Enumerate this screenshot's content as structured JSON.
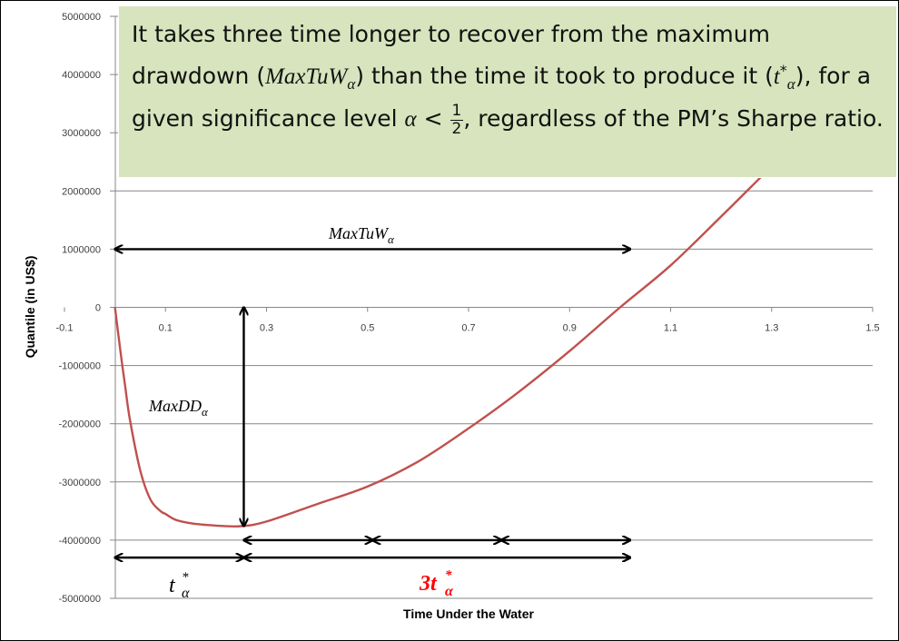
{
  "callout": {
    "p1": "It takes three time longer to recover from the maximum drawdown (",
    "maxtuw_sym": "MaxTuW",
    "alpha": "α",
    "p2": ") than the time it took to produce it (",
    "t_sym": "t",
    "star": "*",
    "p3": "), for a given significance level ",
    "lt": " < ",
    "frac_num": "1",
    "frac_den": "2",
    "p4": ", regardless of the PM’s Sharpe ratio."
  },
  "annotations": {
    "maxtuw": {
      "base": "MaxTuW",
      "sub": "α"
    },
    "maxdd": {
      "base": "MaxDD",
      "sub": "α"
    },
    "t_star": {
      "base": "t",
      "sub": "α",
      "sup": "*"
    },
    "three_t_star": {
      "base": "3t",
      "sub": "α",
      "sup": "*",
      "color": "#ff0000"
    }
  },
  "colors": {
    "curve": "#c0504d",
    "callout_bg": "#d7e4bd",
    "gridline": "#878787",
    "arrow": "#000000"
  },
  "chart_data": {
    "type": "line",
    "title": "",
    "xlabel": "Time Under the Water",
    "ylabel": "Quantile (in US$)",
    "xlim": [
      -0.1,
      1.5
    ],
    "ylim": [
      -5000000,
      5000000
    ],
    "x_ticks": [
      "-0.1",
      "0.1",
      "0.3",
      "0.5",
      "0.7",
      "0.9",
      "1.1",
      "1.3",
      "1.5"
    ],
    "y_ticks": [
      "5000000",
      "4000000",
      "3000000",
      "2000000",
      "1000000",
      "0",
      "-1000000",
      "-2000000",
      "-3000000",
      "-4000000",
      "-5000000"
    ],
    "grid": "horizontal",
    "series": [
      {
        "color": "#c0504d",
        "x": [
          0,
          0.01,
          0.02,
          0.03,
          0.05,
          0.07,
          0.09,
          0.1,
          0.12,
          0.15,
          0.2,
          0.25,
          0.3,
          0.4,
          0.5,
          0.6,
          0.7,
          0.8,
          0.9,
          1.0,
          1.1,
          1.2,
          1.28
        ],
        "y": [
          0,
          -700000,
          -1350000,
          -1950000,
          -2800000,
          -3300000,
          -3500000,
          -3550000,
          -3650000,
          -3710000,
          -3750000,
          -3760000,
          -3680000,
          -3380000,
          -3080000,
          -2650000,
          -2080000,
          -1450000,
          -750000,
          0,
          720000,
          1560000,
          2250000
        ]
      }
    ],
    "arrows": [
      {
        "label": "MaxTuW_α",
        "from": [
          0,
          1000000
        ],
        "to": [
          1.02,
          1000000
        ]
      },
      {
        "label": "MaxDD_α",
        "from": [
          0.255,
          0
        ],
        "to": [
          0.255,
          -3760000
        ]
      },
      {
        "label": "t*_α",
        "from": [
          0,
          -4300000
        ],
        "to": [
          0.255,
          -4300000
        ]
      },
      {
        "label": "3t*_α",
        "from": [
          0.255,
          -4300000
        ],
        "to": [
          1.02,
          -4300000
        ]
      },
      {
        "label": "",
        "from": [
          0.255,
          -4000000
        ],
        "to": [
          0.51,
          -4000000
        ]
      },
      {
        "label": "",
        "from": [
          0.51,
          -4000000
        ],
        "to": [
          0.765,
          -4000000
        ]
      },
      {
        "label": "",
        "from": [
          0.765,
          -4000000
        ],
        "to": [
          1.02,
          -4000000
        ]
      }
    ]
  }
}
